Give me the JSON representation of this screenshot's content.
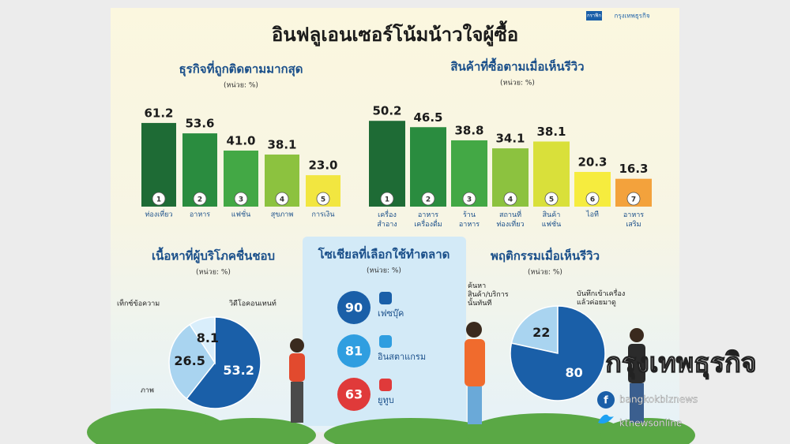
{
  "title": "อินฟลูเอนเซอร์โน้มน้าวใจผู้ซื้อ",
  "credit": [
    "กราฟิก",
    "กรุงเทพธุรกิจ"
  ],
  "watermark": {
    "brand": "กรุงเทพธุรกิจ",
    "facebook": "bangkokbiznews",
    "twitter": "ktnewsonline"
  },
  "chart_data": [
    {
      "type": "bar",
      "title": "ธุรกิจที่ถูกติดตามมากสุด",
      "subtitle": "(หน่วย: %)",
      "categories": [
        "ท่องเที่ยว",
        "อาหาร",
        "แฟชั่น",
        "สุขภาพ",
        "การเงิน"
      ],
      "rank_labels": [
        "1",
        "2",
        "3",
        "4",
        "5"
      ],
      "values": [
        61.2,
        53.6,
        41.0,
        38.1,
        23.0
      ],
      "value_labels": [
        "61.2",
        "53.6",
        "41.0",
        "38.1",
        "23.0"
      ],
      "colors": [
        "#1e6b35",
        "#2a8c3f",
        "#43a845",
        "#8cc23f",
        "#f2e640"
      ],
      "ylim": [
        0,
        75
      ]
    },
    {
      "type": "bar",
      "title": "สินค้าที่ซื้อตามเมื่อเห็นรีวิว",
      "subtitle": "(หน่วย: %)",
      "categories": [
        "เครื่อง\nสำอาง",
        "อาหาร\nเครื่องดื่ม",
        "ร้าน\nอาหาร",
        "สถานที่\nท่องเที่ยว",
        "สินค้า\nแฟชั่น",
        "ไอที",
        "อาหาร\nเสริม"
      ],
      "rank_labels": [
        "1",
        "2",
        "3",
        "4",
        "5",
        "6",
        "7"
      ],
      "values": [
        50.2,
        46.5,
        38.8,
        34.1,
        38.1,
        20.3,
        16.3
      ],
      "colors": [
        "#1e6b35",
        "#2a8c3f",
        "#43a845",
        "#8cc23f",
        "#d9e03a",
        "#f6ec3e",
        "#f3a23c"
      ],
      "ylim": [
        0,
        60
      ]
    },
    {
      "type": "pie",
      "title": "เนื้อหาที่ผู้บริโภคชื่นชอบ",
      "subtitle": "(หน่วย: %)",
      "categories": [
        "วิดีโอคอนเทนท์",
        "ภาพ",
        "เท็กซ์ข้อความ"
      ],
      "values": [
        53.2,
        26.5,
        8.1
      ],
      "colors": [
        "#1a5fa8",
        "#a9d4f0",
        "#d9eefb"
      ],
      "direction": "clockwise"
    },
    {
      "type": "bubble-list",
      "title": "โซเชียลที่เลือกใช้ทำตลาด",
      "subtitle": "(หน่วย: %)",
      "categories": [
        "เฟซบุ๊ค",
        "อินสตาแกรม",
        "ยูทูบ"
      ],
      "values": [
        90,
        81,
        63
      ],
      "colors": [
        "#1a5fa8",
        "#2f9ee0",
        "#e03a3a"
      ]
    },
    {
      "type": "pie",
      "title": "พฤติกรรมเมื่อเห็นรีวิว",
      "subtitle": "(หน่วย: %)",
      "categories": [
        "ค้นหา\nสินค้า/บริการ\nนั้นทันที",
        "บันทึกเข้าเครื่อง\nแล้วค่อยมาดู"
      ],
      "values": [
        22,
        80
      ],
      "colors": [
        "#a9d4f0",
        "#1a5fa8"
      ],
      "direction": "counterclockwise"
    }
  ]
}
